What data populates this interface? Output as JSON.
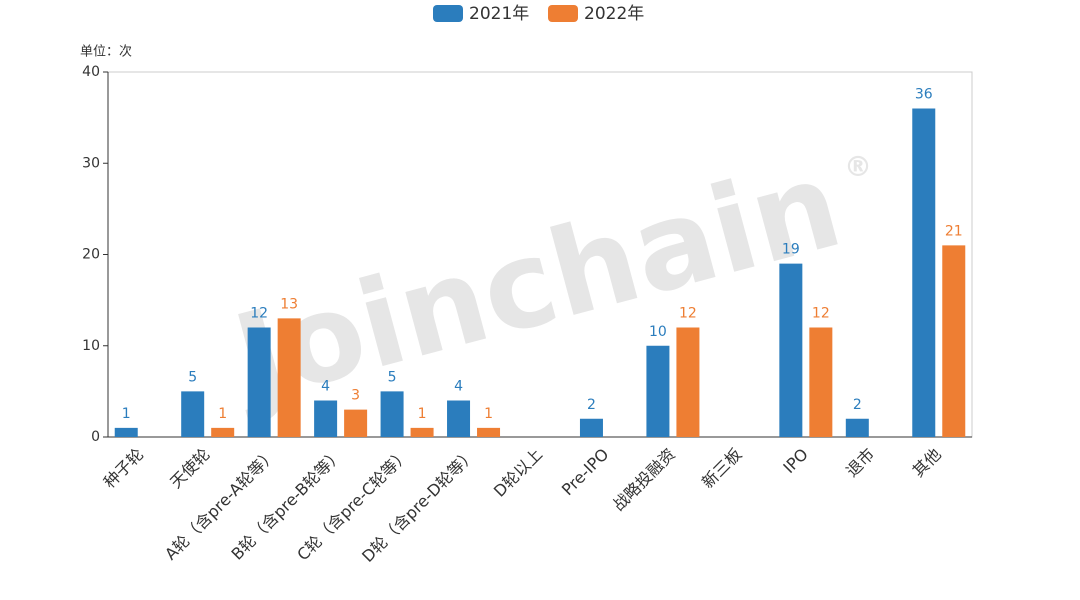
{
  "chart_data": {
    "type": "bar",
    "legend_position": "top",
    "y_axis_label": "单位：次",
    "watermark": "Joinchain",
    "watermark_mark": "®",
    "categories": [
      "种子轮",
      "天使轮",
      "A轮（含pre-A轮等）",
      "B轮（含pre-B轮等）",
      "C轮（含pre-C轮等）",
      "D轮（含pre-D轮等）",
      "D轮以上",
      "Pre-IPO",
      "战略投融资",
      "新三板",
      "IPO",
      "退市",
      "其他"
    ],
    "series": [
      {
        "name": "2021年",
        "color": "#2b7dbd",
        "values": [
          1,
          5,
          12,
          4,
          5,
          4,
          null,
          2,
          10,
          null,
          19,
          2,
          36
        ]
      },
      {
        "name": "2022年",
        "color": "#ee7e33",
        "values": [
          null,
          1,
          13,
          3,
          1,
          1,
          null,
          null,
          12,
          null,
          12,
          null,
          21
        ]
      }
    ],
    "ylim": [
      0,
      40
    ],
    "yticks": [
      0,
      10,
      20,
      30,
      40
    ],
    "grid": false
  }
}
